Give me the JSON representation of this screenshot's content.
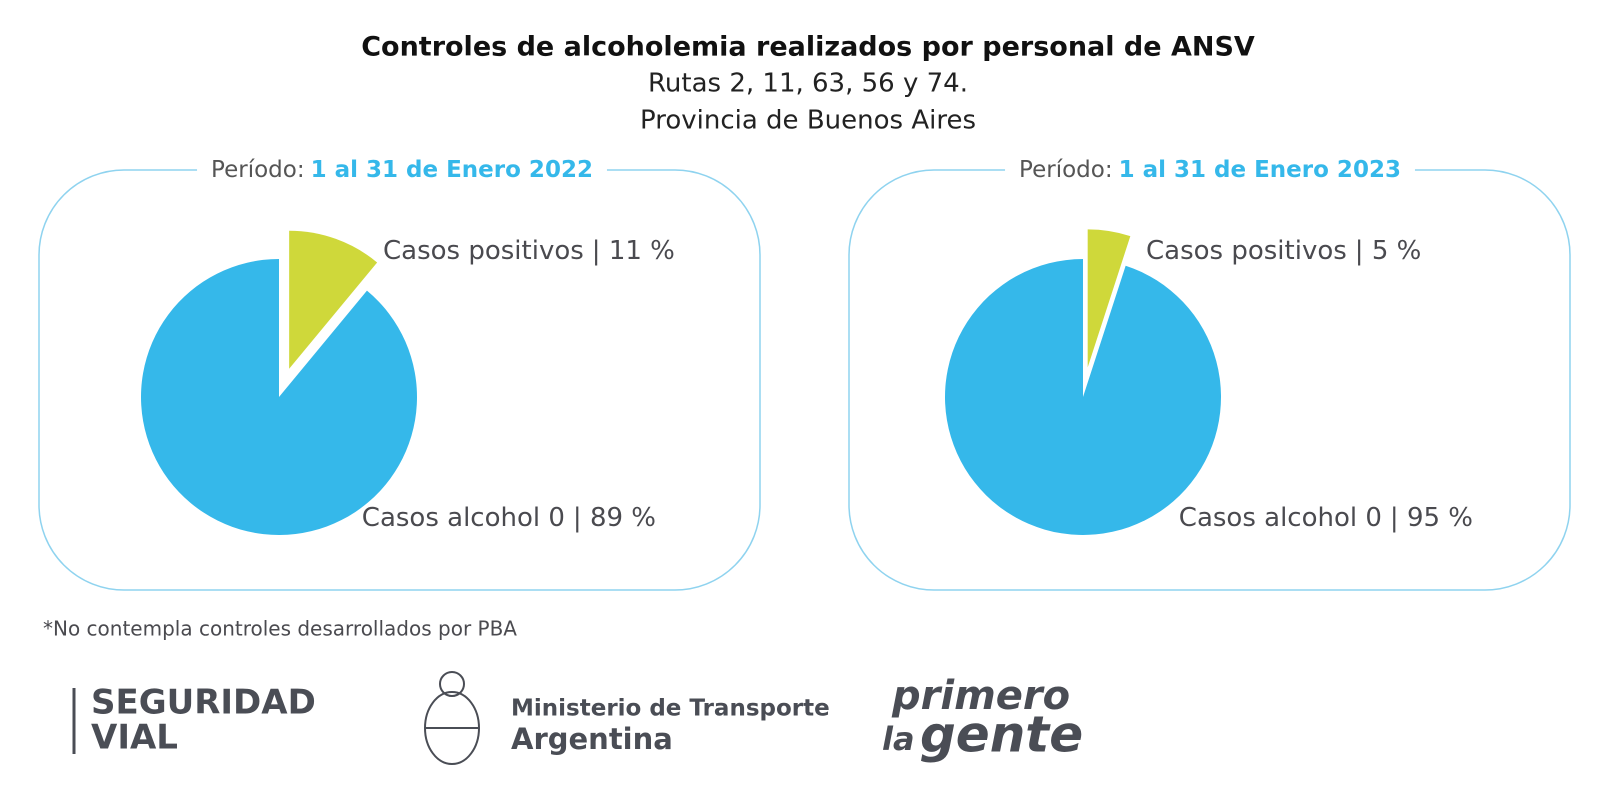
{
  "header": {
    "title": "Controles de alcoholemia realizados por personal de ANSV",
    "subtitle": "Rutas 2, 11, 63, 56 y 74.",
    "subtitle2": "Provincia de Buenos Aires"
  },
  "chart_data": [
    {
      "type": "pie",
      "period_label": "Período:",
      "period": "1 al 31 de Enero 2022",
      "categories": [
        "Casos positivos",
        "Casos alcohol 0"
      ],
      "values": [
        11,
        89
      ],
      "value_labels": [
        "| 11 %",
        "| 89 %"
      ],
      "colors": [
        "#cfd83a",
        "#35b8ea"
      ],
      "explode": [
        true,
        false
      ]
    },
    {
      "type": "pie",
      "period_label": "Período:",
      "period": "1 al 31 de Enero 2023",
      "categories": [
        "Casos positivos",
        "Casos alcohol 0"
      ],
      "values": [
        5,
        95
      ],
      "value_labels": [
        "| 5 %",
        "| 95 %"
      ],
      "colors": [
        "#cfd83a",
        "#35b8ea"
      ],
      "explode": [
        true,
        false
      ]
    }
  ],
  "footnote": "*No contempla controles desarrollados por PBA",
  "logos": {
    "seguridad": "SEGURIDAD",
    "vial": "VIAL",
    "ministerio": "Ministerio de Transporte",
    "argentina": "Argentina",
    "primero": "primero",
    "la": "la",
    "gente": "gente"
  }
}
